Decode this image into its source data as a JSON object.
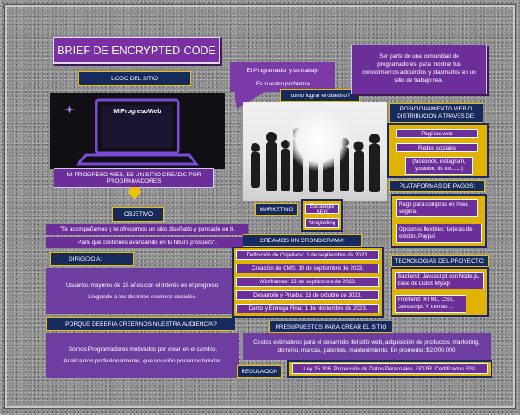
{
  "title": "BRIEF DE ENCRYPTED CODE",
  "logo": {
    "header": "LOGO DEL SITIO",
    "brand_name": "MiProgresoWeb",
    "caption": "MI PROGRESO WEB, ES UN SITIO CREADO POR PROGRAMADORES"
  },
  "programador": {
    "title": "El Programador y su trabajo",
    "problem": "Es nuestro problema"
  },
  "objetivo_question": "como lograr el objetivo?",
  "mission": "Ser parte de una comunidad de programadores, para mostrar tus conocimientos adquiridos y plasmarlos en un sitio de trabajo real.",
  "objetivo": {
    "label": "OBJETIVO",
    "line1": "\"Te acompañamos y te ofrecemos un sitio diseñado y pensado en ti.",
    "line2": "Para que continúes avanzando en tu futuro próspero\"."
  },
  "marketing": {
    "label": "MARKETING",
    "items": [
      "Estrategia SEO",
      "Storytelling"
    ]
  },
  "dirigido": {
    "label": "DIRIGIDO A:",
    "text1": "Usuarios mayores de 18 años con el interés en el progreso.",
    "text2": "Llegando a los distintos sectores sociales."
  },
  "porque": {
    "label": "PORQUE DEBERIA CREERNOS NUESTRA AUDIENCIA?",
    "text1": "Somos Programadores motivados por crear en el cambio.",
    "text2": "Analizamos profesionalmente, que solución podemos brindar."
  },
  "cronograma": {
    "label": "CREAMOS UN CRONOGRAMA:",
    "items": [
      "Definición de Objetivos: 1 de septiembre de 2023.",
      "Creación de CMS: 10 de septiembre de 2023.",
      "Wireframes: 23 de septiembre de 2023.",
      "Desarrollo y Prueba: 15 de octubre de 2023.",
      "Demo y Entrega Final: 1 de Noviembre de 2023."
    ]
  },
  "posicionamiento": {
    "label": "POSICIONAMIENTO WEB O DISTRIBUCION A TRAVES DE:",
    "items": [
      "Paginas web",
      "Redes sociales",
      "(facebook, instagram, youtube, tik tok......)"
    ]
  },
  "pagos": {
    "label": "PLATAFORMAS DE PAGOS:",
    "text1": "Pago para compras en línea segura.",
    "text2": "Opciones flexibles: tarjetas de crédito, Paypal"
  },
  "tecnologias": {
    "label": "TECNOLOGIAS DEL PROYECTO:",
    "text1": "Backend: Javascript con Node.js, base de Datos Mysql.",
    "text2": "Frontend: HTML, CSS, Javascript. Y demas ..."
  },
  "presupuestos": {
    "label": "PRESUPUESTOS PARA CREAR EL SITIO",
    "text": "Costos estimativos para el desarrollo del sitio web, adquisición de productos, marketing, dominio, marcas, patentes, mantenimiento. En promedio: $2.000.000"
  },
  "regulacion": {
    "label": "REGULACION",
    "text": "Ley 25.326. Protección de Datos Personales. GDPR. Certificados SSL"
  },
  "colors": {
    "purple": "#6c2f9a",
    "navy": "#172a5e",
    "gold": "#e0b300"
  }
}
